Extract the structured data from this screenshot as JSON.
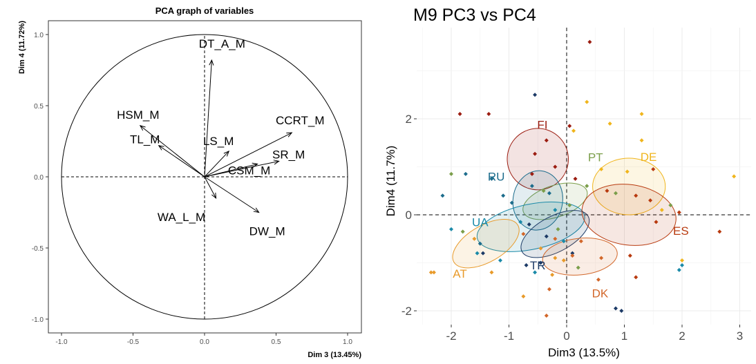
{
  "chart_data": [
    {
      "type": "pca-correlation-circle",
      "title": "PCA graph of variables",
      "xlabel": "Dim 3 (13.45%)",
      "ylabel": "Dim 4 (11.72%)",
      "xlim": [
        -1.0,
        1.0
      ],
      "ylim": [
        -1.0,
        1.0
      ],
      "xticks": [
        "-1.0",
        "-0.5",
        "0.0",
        "0.5",
        "1.0"
      ],
      "yticks": [
        "-1.0",
        "-0.5",
        "0.0",
        "0.5",
        "1.0"
      ],
      "variables": [
        {
          "name": "DT_A_M",
          "x": 0.05,
          "y": 0.82
        },
        {
          "name": "HSM_M",
          "x": -0.45,
          "y": 0.36
        },
        {
          "name": "TL_M",
          "x": -0.32,
          "y": 0.22
        },
        {
          "name": "LS_M",
          "x": 0.17,
          "y": 0.18
        },
        {
          "name": "CCRT_M",
          "x": 0.61,
          "y": 0.31
        },
        {
          "name": "SR_M",
          "x": 0.52,
          "y": 0.11
        },
        {
          "name": "CSM_M",
          "x": 0.37,
          "y": 0.09
        },
        {
          "name": "WA_L_M",
          "x": 0.08,
          "y": -0.15
        },
        {
          "name": "DW_M",
          "x": 0.38,
          "y": -0.25
        }
      ]
    },
    {
      "type": "scatter",
      "title": "M9 PC3 vs PC4",
      "xlabel": "Dim3 (13.5%)",
      "ylabel": "Dim4 (11.7%)",
      "xlim": [
        -2.55,
        3.2
      ],
      "ylim": [
        -2.3,
        3.85
      ],
      "xticks": [
        "-2",
        "-1",
        "0",
        "1",
        "2",
        "3"
      ],
      "yticks": [
        "-2",
        "0",
        "2"
      ],
      "grid": true,
      "legend": "none",
      "groups": [
        {
          "name": "FI",
          "color": "#9b1c10",
          "center": [
            -0.5,
            1.16
          ],
          "semi_axes": [
            0.53,
            0.64
          ],
          "angle_deg": -4,
          "points": [
            [
              -1.85,
              2.1
            ],
            [
              -1.35,
              2.1
            ],
            [
              -0.55,
              1.27
            ],
            [
              -0.35,
              1.55
            ],
            [
              0.05,
              1.85
            ],
            [
              0.4,
              3.6
            ],
            [
              -0.2,
              1.0
            ],
            [
              0.15,
              0.75
            ],
            [
              -0.6,
              0.85
            ]
          ]
        },
        {
          "name": "PT",
          "color": "#7b9e4a",
          "center": [
            -0.2,
            0.28
          ],
          "semi_axes": [
            0.58,
            0.33
          ],
          "angle_deg": -18,
          "points": [
            [
              -2.0,
              0.85
            ],
            [
              -1.8,
              -0.35
            ],
            [
              -0.4,
              0.5
            ],
            [
              0.05,
              0.2
            ],
            [
              0.35,
              0.6
            ],
            [
              0.85,
              0.45
            ],
            [
              0.2,
              -1.1
            ],
            [
              -0.15,
              -0.3
            ],
            [
              1.8,
              0.2
            ]
          ]
        },
        {
          "name": "DE",
          "color": "#f0b51c",
          "center": [
            1.08,
            0.59
          ],
          "semi_axes": [
            0.63,
            0.59
          ],
          "angle_deg": 0,
          "points": [
            [
              0.35,
              2.35
            ],
            [
              0.12,
              1.75
            ],
            [
              0.75,
              1.9
            ],
            [
              1.3,
              2.1
            ],
            [
              1.3,
              1.55
            ],
            [
              1.05,
              0.9
            ],
            [
              1.65,
              0.1
            ],
            [
              2.9,
              0.8
            ],
            [
              2.0,
              -0.95
            ],
            [
              0.6,
              0.95
            ]
          ]
        },
        {
          "name": "RU",
          "color": "#1c6c8c",
          "center": [
            -0.5,
            0.3
          ],
          "semi_axes": [
            0.43,
            0.62
          ],
          "angle_deg": 8,
          "points": [
            [
              -1.75,
              0.85
            ],
            [
              -1.3,
              0.75
            ],
            [
              -1.1,
              0.4
            ],
            [
              -0.95,
              0.25
            ],
            [
              -0.6,
              0.6
            ],
            [
              -0.3,
              0.45
            ],
            [
              -1.5,
              -0.6
            ],
            [
              -2.15,
              0.4
            ]
          ]
        },
        {
          "name": "UA",
          "color": "#1a8aa8",
          "center": [
            -0.62,
            -0.25
          ],
          "semi_axes": [
            0.95,
            0.47
          ],
          "angle_deg": -12,
          "points": [
            [
              -2.0,
              -0.3
            ],
            [
              -1.55,
              -0.8
            ],
            [
              -1.15,
              -0.95
            ],
            [
              -0.55,
              -1.2
            ],
            [
              -0.05,
              -0.55
            ],
            [
              1.95,
              -1.15
            ],
            [
              2.0,
              -1.05
            ],
            [
              -0.2,
              0.1
            ],
            [
              -0.8,
              -0.15
            ]
          ]
        },
        {
          "name": "TR",
          "color": "#1c3a66",
          "center": [
            -0.2,
            -0.4
          ],
          "semi_axes": [
            0.65,
            0.37
          ],
          "angle_deg": -28,
          "points": [
            [
              -0.55,
              2.5
            ],
            [
              -0.7,
              -1.05
            ],
            [
              -0.45,
              -1.0
            ],
            [
              0.85,
              -1.95
            ],
            [
              0.95,
              -2.0
            ],
            [
              -0.35,
              -0.45
            ],
            [
              0.1,
              -0.8
            ],
            [
              -0.65,
              -0.2
            ],
            [
              -1.45,
              -0.8
            ]
          ]
        },
        {
          "name": "ES",
          "color": "#b83a0f",
          "center": [
            1.08,
            0.0
          ],
          "semi_axes": [
            0.82,
            0.63
          ],
          "angle_deg": 8,
          "points": [
            [
              1.2,
              0.4
            ],
            [
              1.45,
              0.3
            ],
            [
              1.55,
              -0.15
            ],
            [
              1.95,
              0.05
            ],
            [
              2.65,
              -0.35
            ],
            [
              1.5,
              0.95
            ],
            [
              1.2,
              -1.3
            ],
            [
              1.1,
              -0.85
            ],
            [
              0.7,
              0.5
            ]
          ]
        },
        {
          "name": "DK",
          "color": "#d2672a",
          "center": [
            0.23,
            -0.87
          ],
          "semi_axes": [
            0.65,
            0.38
          ],
          "angle_deg": -6,
          "points": [
            [
              0.6,
              -0.9
            ],
            [
              0.25,
              -0.55
            ],
            [
              -0.2,
              -0.5
            ],
            [
              0.55,
              -1.35
            ],
            [
              -0.35,
              -2.1
            ],
            [
              0.1,
              -0.85
            ],
            [
              -0.75,
              -0.4
            ],
            [
              -0.3,
              -1.55
            ]
          ]
        },
        {
          "name": "AT",
          "color": "#e89a2a",
          "center": [
            -1.4,
            -0.6
          ],
          "semi_axes": [
            0.64,
            0.38
          ],
          "angle_deg": -30,
          "points": [
            [
              -2.3,
              -1.2
            ],
            [
              -2.35,
              -1.2
            ],
            [
              -1.6,
              -0.5
            ],
            [
              -1.3,
              -1.2
            ],
            [
              -0.75,
              -1.7
            ],
            [
              -0.25,
              -1.25
            ],
            [
              -0.05,
              -0.95
            ],
            [
              -0.2,
              -0.9
            ],
            [
              -0.45,
              -0.7
            ]
          ]
        }
      ]
    }
  ]
}
